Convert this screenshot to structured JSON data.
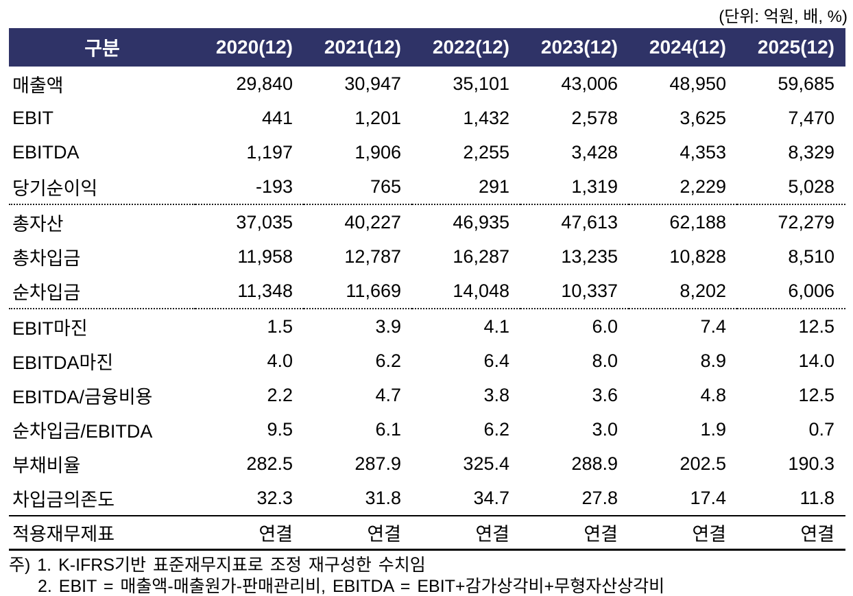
{
  "unit_note": "(단위: 억원, 배, %)",
  "colors": {
    "header_bg": "#2F3367",
    "header_text": "#FFFFFF",
    "body_text": "#000000"
  },
  "table": {
    "columns": [
      "구분",
      "2020(12)",
      "2021(12)",
      "2022(12)",
      "2023(12)",
      "2024(12)",
      "2025(12)"
    ],
    "sections": [
      {
        "divider": "none",
        "rows": [
          {
            "label": "매출액",
            "values": [
              "29,840",
              "30,947",
              "35,101",
              "43,006",
              "48,950",
              "59,685"
            ]
          },
          {
            "label": "EBIT",
            "values": [
              "441",
              "1,201",
              "1,432",
              "2,578",
              "3,625",
              "7,470"
            ]
          },
          {
            "label": "EBITDA",
            "values": [
              "1,197",
              "1,906",
              "2,255",
              "3,428",
              "4,353",
              "8,329"
            ]
          },
          {
            "label": "당기순이익",
            "values": [
              "-193",
              "765",
              "291",
              "1,319",
              "2,229",
              "5,028"
            ]
          }
        ]
      },
      {
        "divider": "dotted",
        "rows": [
          {
            "label": "총자산",
            "values": [
              "37,035",
              "40,227",
              "46,935",
              "47,613",
              "62,188",
              "72,279"
            ]
          },
          {
            "label": "총차입금",
            "values": [
              "11,958",
              "12,787",
              "16,287",
              "13,235",
              "10,828",
              "8,510"
            ]
          },
          {
            "label": "순차입금",
            "values": [
              "11,348",
              "11,669",
              "14,048",
              "10,337",
              "8,202",
              "6,006"
            ]
          }
        ]
      },
      {
        "divider": "dotted",
        "rows": [
          {
            "label": "EBIT마진",
            "values": [
              "1.5",
              "3.9",
              "4.1",
              "6.0",
              "7.4",
              "12.5"
            ]
          },
          {
            "label": "EBITDA마진",
            "values": [
              "4.0",
              "6.2",
              "6.4",
              "8.0",
              "8.9",
              "14.0"
            ]
          },
          {
            "label": "EBITDA/금융비용",
            "values": [
              "2.2",
              "4.7",
              "3.8",
              "3.6",
              "4.8",
              "12.5"
            ]
          },
          {
            "label": "순차입금/EBITDA",
            "values": [
              "9.5",
              "6.1",
              "6.2",
              "3.0",
              "1.9",
              "0.7"
            ]
          },
          {
            "label": "부채비율",
            "values": [
              "282.5",
              "287.9",
              "325.4",
              "288.9",
              "202.5",
              "190.3"
            ]
          },
          {
            "label": "차입금의존도",
            "values": [
              "32.3",
              "31.8",
              "34.7",
              "27.8",
              "17.4",
              "11.8"
            ]
          }
        ]
      },
      {
        "divider": "solid",
        "footer": true,
        "rows": [
          {
            "label": "적용재무제표",
            "values": [
              "연결",
              "연결",
              "연결",
              "연결",
              "연결",
              "연결"
            ]
          }
        ]
      }
    ]
  },
  "footnotes": {
    "line1": "주) 1. K-IFRS기반 표준재무지표로 조정 재구성한 수치임",
    "line2": "2. EBIT = 매출액-매출원가-판매관리비, EBITDA = EBIT+감가상각비+무형자산상각비"
  }
}
